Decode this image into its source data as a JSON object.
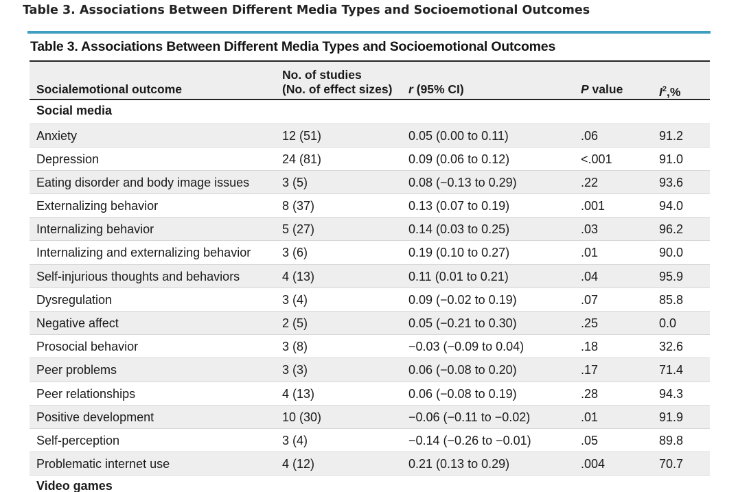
{
  "page_title": "Table 3.  Associations Between Different Media Types and Socioemotional Outcomes",
  "table": {
    "caption": "Table 3. Associations Between Different Media Types and Socioemotional Outcomes",
    "columns": {
      "outcome": "Socialemotional outcome",
      "studies_line1": "No. of studies",
      "studies_line2": "(No. of effect sizes)",
      "r_symbol": "r",
      "r_rest": " (95% CI)",
      "p_symbol": "P",
      "p_rest": " value",
      "i2_symbol": "I",
      "i2_sup": "2",
      "i2_rest": ",%"
    },
    "sections": [
      {
        "title": "Social media",
        "rows": [
          {
            "outcome": "Anxiety",
            "studies": "12 (51)",
            "r": "0.05 (0.00 to 0.11)",
            "p": ".06",
            "i2": "91.2"
          },
          {
            "outcome": "Depression",
            "studies": "24 (81)",
            "r": "0.09 (0.06 to 0.12)",
            "p": "<.001",
            "i2": "91.0"
          },
          {
            "outcome": "Eating disorder and body image issues",
            "studies": "3 (5)",
            "r": "0.08 (−0.13 to 0.29)",
            "p": ".22",
            "i2": "93.6"
          },
          {
            "outcome": "Externalizing behavior",
            "studies": "8 (37)",
            "r": "0.13 (0.07 to 0.19)",
            "p": ".001",
            "i2": "94.0"
          },
          {
            "outcome": "Internalizing behavior",
            "studies": "5 (27)",
            "r": "0.14 (0.03 to 0.25)",
            "p": ".03",
            "i2": "96.2"
          },
          {
            "outcome": "Internalizing and externalizing behavior",
            "studies": "3 (6)",
            "r": "0.19 (0.10 to 0.27)",
            "p": ".01",
            "i2": "90.0"
          },
          {
            "outcome": "Self-injurious thoughts and behaviors",
            "studies": "4 (13)",
            "r": "0.11 (0.01 to 0.21)",
            "p": ".04",
            "i2": "95.9"
          },
          {
            "outcome": "Dysregulation",
            "studies": "3 (4)",
            "r": "0.09 (−0.02 to 0.19)",
            "p": ".07",
            "i2": "85.8"
          },
          {
            "outcome": "Negative affect",
            "studies": "2 (5)",
            "r": "0.05 (−0.21 to 0.30)",
            "p": ".25",
            "i2": "0.0"
          },
          {
            "outcome": "Prosocial behavior",
            "studies": "3 (8)",
            "r": "−0.03 (−0.09 to 0.04)",
            "p": ".18",
            "i2": "32.6"
          },
          {
            "outcome": "Peer problems",
            "studies": "3 (3)",
            "r": "0.06 (−0.08 to 0.20)",
            "p": ".17",
            "i2": "71.4"
          },
          {
            "outcome": "Peer relationships",
            "studies": "4 (13)",
            "r": "0.06 (−0.08 to 0.19)",
            "p": ".28",
            "i2": "94.3"
          },
          {
            "outcome": "Positive development",
            "studies": "10 (30)",
            "r": "−0.06 (−0.11 to −0.02)",
            "p": ".01",
            "i2": "91.9"
          },
          {
            "outcome": "Self-perception",
            "studies": "3 (4)",
            "r": "−0.14 (−0.26 to −0.01)",
            "p": ".05",
            "i2": "89.8"
          },
          {
            "outcome": "Problematic internet use",
            "studies": "4 (12)",
            "r": "0.21 (0.13 to 0.29)",
            "p": ".004",
            "i2": "70.7"
          }
        ]
      },
      {
        "title": "Video games",
        "rows": []
      }
    ]
  },
  "colors": {
    "accent": "#3e9fc2",
    "row_shade": "#eeeeee",
    "rule": "#222222"
  }
}
